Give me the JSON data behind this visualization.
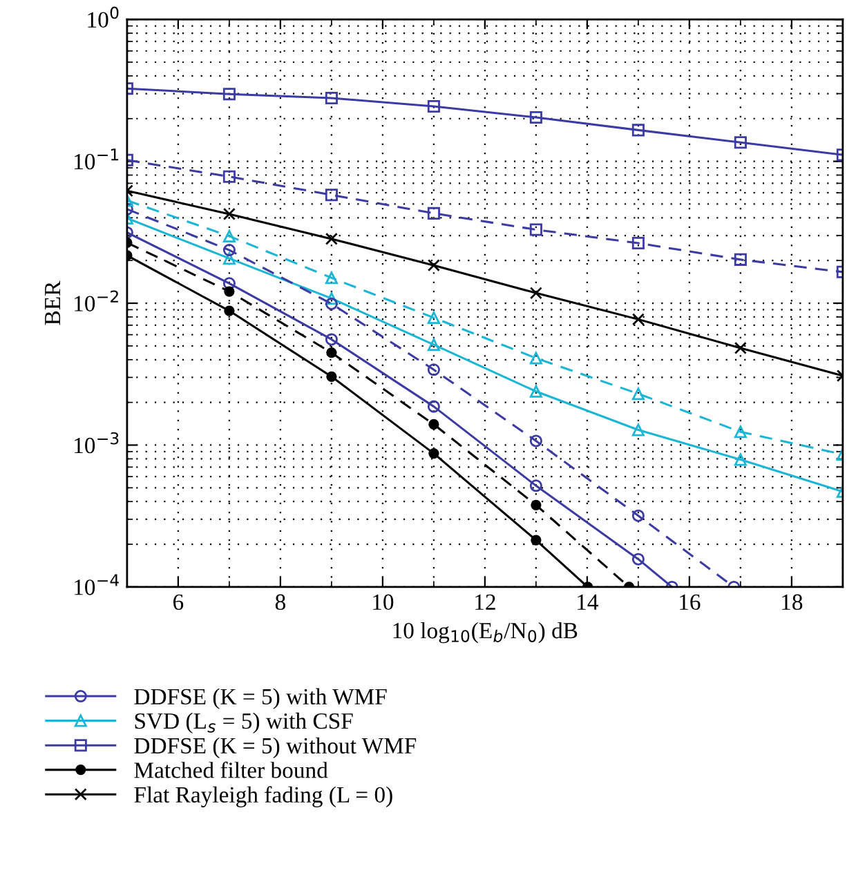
{
  "chart_data": {
    "type": "line",
    "xlabel": "10 log$_{10}$(E$_{b}$/N$_{0}$) dB",
    "ylabel": "BER",
    "log": "y",
    "xlim": [
      5,
      19
    ],
    "xticks": [
      6,
      8,
      10,
      12,
      14,
      16,
      18
    ],
    "ylim": [
      0.0001,
      1
    ],
    "yticks": [
      {
        "value": 0.0001,
        "label": "10$^{−4}$"
      },
      {
        "value": 0.001,
        "label": "10$^{−3}$"
      },
      {
        "value": 0.01,
        "label": "10$^{−2}$"
      },
      {
        "value": 0.1,
        "label": "10$^{−1}$"
      },
      {
        "value": 1,
        "label": "10$^{0}$"
      }
    ],
    "grid": true,
    "legend": "bottom",
    "series": [
      {
        "name": "DDFSE (K = 5) with WMF",
        "color": "#3b3ba3",
        "marker": "circle",
        "line_style": "solid",
        "x": [
          5,
          7,
          9,
          11,
          13,
          15,
          15.66
        ],
        "values": [
          0.0315,
          0.0138,
          0.00556,
          0.00187,
          0.000517,
          0.000157,
          0.0001
        ]
      },
      {
        "name": "SVD (L$_{s}$ = 5) with CSF",
        "color": "#1bb6d6",
        "marker": "triangle",
        "line_style": "solid",
        "x": [
          5,
          7,
          9,
          11,
          13,
          15,
          17,
          19
        ],
        "values": [
          0.0397,
          0.0207,
          0.0108,
          0.0051,
          0.00239,
          0.00128,
          0.00079,
          0.00047
        ]
      },
      {
        "name": "DDFSE (K = 5) without WMF",
        "color": "#3b3ba3",
        "marker": "square",
        "line_style": "solid",
        "x": [
          5,
          7,
          9,
          11,
          13,
          15,
          17,
          19
        ],
        "values": [
          0.326,
          0.298,
          0.279,
          0.244,
          0.204,
          0.166,
          0.136,
          0.111
        ]
      },
      {
        "name": "Matched filter bound",
        "color": "#000000",
        "marker": "circle",
        "line_style": "solid",
        "x": [
          5,
          7,
          9,
          11,
          13,
          14.01
        ],
        "values": [
          0.0217,
          0.00884,
          0.00304,
          0.000873,
          0.000214,
          0.0001
        ]
      },
      {
        "name": "Flat Rayleigh fading (L = 0)",
        "color": "#000000",
        "marker": "cross",
        "line_style": "solid",
        "x": [
          5,
          7,
          9,
          11,
          13,
          15,
          17,
          19
        ],
        "values": [
          0.062,
          0.0425,
          0.0284,
          0.0185,
          0.0118,
          0.0077,
          0.00483,
          0.00308
        ]
      },
      {
        "color": "#3b3ba3",
        "marker": "circle",
        "line_style": "dashed",
        "x": [
          5,
          7,
          9,
          11,
          13,
          15,
          16.87
        ],
        "values": [
          0.046,
          0.0237,
          0.0099,
          0.0034,
          0.00107,
          0.000318,
          0.0001
        ]
      },
      {
        "color": "#1bb6d6",
        "marker": "triangle",
        "line_style": "dashed",
        "x": [
          5,
          7,
          9,
          11,
          13,
          15,
          17,
          19
        ],
        "values": [
          0.053,
          0.0297,
          0.0151,
          0.0079,
          0.0041,
          0.0023,
          0.00124,
          0.00086
        ]
      },
      {
        "color": "#3b3ba3",
        "marker": "square",
        "line_style": "dashed",
        "x": [
          5,
          7,
          9,
          11,
          13,
          15,
          17,
          19
        ],
        "values": [
          0.102,
          0.078,
          0.058,
          0.043,
          0.033,
          0.0265,
          0.0203,
          0.0166
        ]
      },
      {
        "color": "#000000",
        "marker": "circle",
        "line_style": "dashed",
        "x": [
          5,
          7,
          9,
          11,
          13,
          14.82
        ],
        "values": [
          0.0267,
          0.0121,
          0.00448,
          0.0014,
          0.000378,
          0.0001
        ]
      }
    ]
  }
}
